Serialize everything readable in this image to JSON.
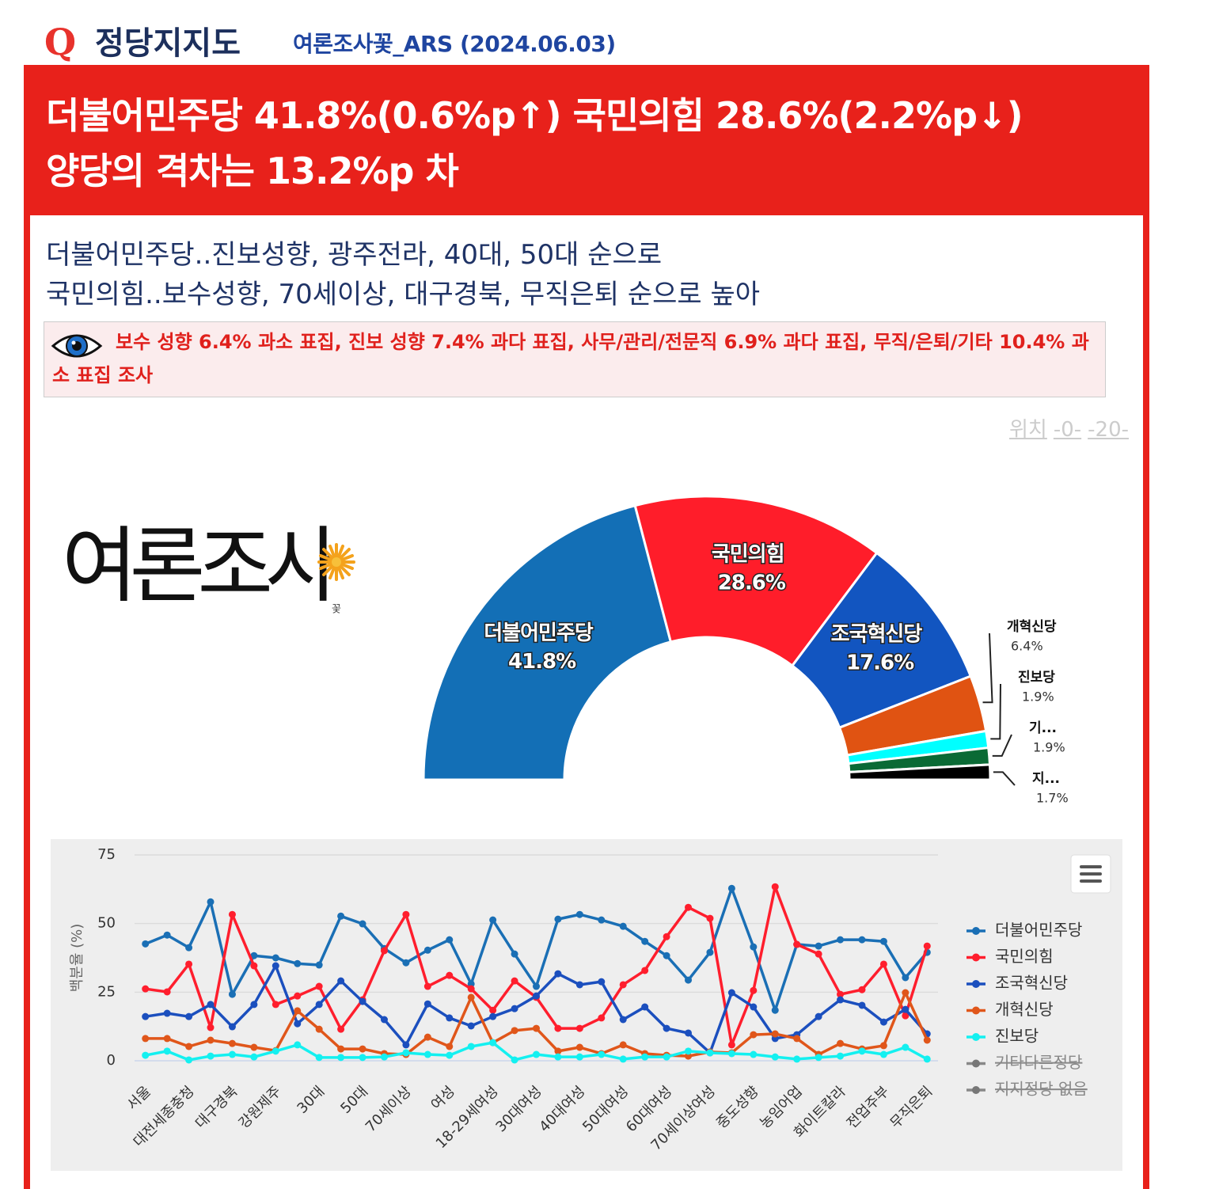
{
  "header": {
    "icon": "Q",
    "title": "정당지지도",
    "source": "여론조사꽃_ARS (2024.06.03)"
  },
  "banner": {
    "lines": [
      "더불어민주당 41.8%(0.6%p↑) 국민의힘 28.6%(2.2%p↓)",
      "양당의 격차는 13.2%p 차"
    ]
  },
  "subtitle": {
    "lines": [
      "더불어민주당..진보성향, 광주전라, 40대, 50대 순으로",
      "국민의힘..보수성향, 70세이상, 대구경북, 무직은퇴 순으로 높아"
    ]
  },
  "note": {
    "text": "보수 성향 6.4% 과소 표집, 진보 성향 7.4% 과다 표집, 사무/관리/전문직 6.9% 과다 표집, 무직/은퇴/기타 10.4% 과소 표집 조사"
  },
  "position_links": [
    "위치",
    "-0-",
    "-20-"
  ],
  "logo": {
    "text": "여론조사",
    "mark": "꽃"
  },
  "chart_data": [
    {
      "type": "pie",
      "semicircle": true,
      "categories": [
        "더불어민주당",
        "국민의힘",
        "조국혁신당",
        "개혁신당",
        "진보당",
        "기...",
        "지..."
      ],
      "values": [
        41.8,
        28.6,
        17.6,
        6.4,
        1.9,
        1.9,
        1.7
      ],
      "value_labels": [
        "41.8%",
        "28.6%",
        "17.6%",
        "6.4%",
        "1.9%",
        "1.9%",
        "1.7%"
      ],
      "colors": [
        "#136fb6",
        "#ff1d2a",
        "#1255c0",
        "#e05312",
        "#00ffff",
        "#0a6a35",
        "#000000"
      ]
    },
    {
      "type": "line",
      "y_label": "백분율 (%)",
      "categories": [
        "서울",
        null,
        "대전세종충청",
        null,
        "대구경북",
        null,
        "강원제주",
        null,
        "30대",
        null,
        "50대",
        null,
        "70세이상",
        null,
        "여성",
        null,
        "18-29세여성",
        null,
        "30대여성",
        null,
        "40대여성",
        null,
        "50대여성",
        null,
        "60대여성",
        null,
        "70세이상여성",
        null,
        "중도성향",
        null,
        "농임어업",
        null,
        "화이트칼라",
        null,
        "전업주부",
        null,
        "무직은퇴"
      ],
      "ylim": [
        0,
        75
      ],
      "yticks": [
        0,
        25,
        50,
        75
      ],
      "grid": true,
      "legend": "right",
      "series": [
        {
          "name": "더불어민주당",
          "color": "#1a6fb5",
          "values": [
            42.6,
            45.8,
            41.2,
            57.9,
            24.2,
            38.3,
            37.5,
            35.4,
            34.9,
            52.7,
            49.9,
            40.9,
            35.7,
            40.3,
            44.1,
            28,
            51.3,
            38.9,
            27.1,
            51.6,
            53.3,
            51.3,
            49,
            43.5,
            38.3,
            29.4,
            39.5,
            62.8,
            41.5,
            18.4,
            42.4,
            41.8,
            44.1,
            44.1,
            43.5,
            30.3,
            39.5
          ]
        },
        {
          "name": "국민의힘",
          "color": "#ff1e2d",
          "values": [
            26.2,
            25.1,
            35.2,
            12.1,
            53.3,
            34.6,
            20.5,
            23.6,
            27.1,
            11.5,
            22.2,
            40.1,
            53.3,
            27.1,
            31.1,
            26.2,
            18.4,
            29.1,
            23.1,
            11.8,
            11.8,
            15.6,
            27.7,
            32.9,
            45.2,
            55.9,
            51.9,
            5.8,
            25.6,
            63.4,
            42.4,
            38.9,
            24.2,
            25.9,
            35.2,
            16.4,
            41.8
          ]
        },
        {
          "name": "조국혁신당",
          "color": "#1b4fbe",
          "values": [
            16.1,
            17.3,
            16.1,
            20.5,
            12.4,
            20.5,
            34.6,
            13.5,
            20.5,
            29.1,
            21.6,
            15,
            5.8,
            20.7,
            15.6,
            12.7,
            16.1,
            19,
            23.6,
            31.7,
            27.7,
            28.8,
            15,
            19.6,
            11.8,
            10.1,
            2.9,
            24.8,
            19.6,
            8.1,
            9.5,
            16.1,
            22.2,
            20.2,
            14.1,
            18.7,
            9.8
          ]
        },
        {
          "name": "개혁신당",
          "color": "#e0561a",
          "values": [
            8.1,
            8.1,
            5.2,
            7.5,
            6.3,
            4.9,
            3.7,
            18.2,
            11.5,
            4.3,
            4.3,
            2.6,
            2.3,
            8.6,
            5.2,
            23.1,
            6.6,
            11,
            11.8,
            3.5,
            4.9,
            2.6,
            5.8,
            2.6,
            2,
            1.7,
            3.2,
            2.9,
            9.5,
            9.8,
            8.1,
            2.3,
            6.3,
            4.3,
            5.5,
            24.8,
            7.5
          ]
        },
        {
          "name": "진보당",
          "color": "#14f0f0",
          "values": [
            2,
            3.5,
            0.3,
            1.7,
            2.3,
            1.4,
            3.5,
            5.8,
            1.2,
            1.2,
            1.2,
            1.4,
            2.9,
            2.3,
            2,
            5.2,
            6.6,
            0.3,
            2.3,
            1.4,
            1.4,
            2.3,
            0.6,
            1.4,
            1.4,
            3.5,
            2.9,
            2.6,
            2.3,
            1.4,
            0.6,
            1.2,
            1.7,
            3.5,
            2.3,
            4.9,
            0.6
          ]
        },
        {
          "name": "기타다른정당",
          "color": "#666666",
          "visible": false
        },
        {
          "name": "지지정당 없음",
          "color": "#666666",
          "visible": false
        }
      ]
    }
  ]
}
